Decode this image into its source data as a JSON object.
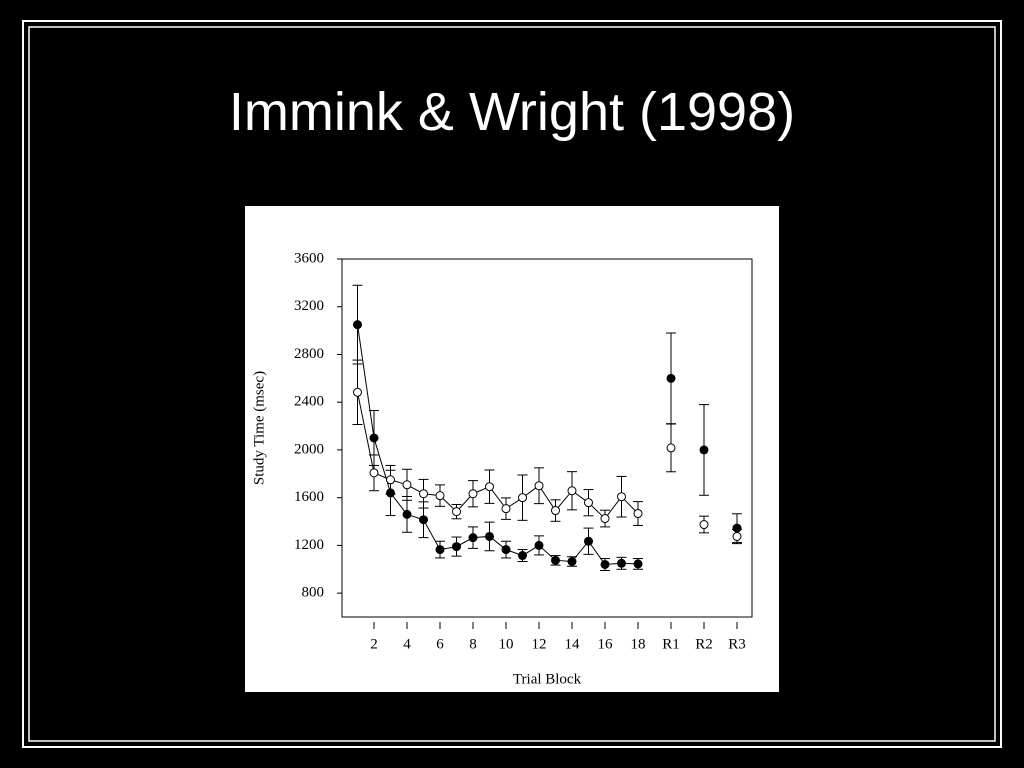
{
  "slide_title": "Immink & Wright (1998)",
  "chart_data": {
    "type": "line",
    "x_label": "Trial Block",
    "y_label": "Study Time (msec)",
    "categories": [
      null,
      "2",
      null,
      "4",
      null,
      "6",
      null,
      "8",
      null,
      "10",
      null,
      "12",
      null,
      "14",
      null,
      "16",
      null,
      "18",
      null,
      "R1",
      null,
      "R2",
      null,
      "R3"
    ],
    "ylim": [
      600,
      3600
    ],
    "yticks": [
      800,
      1200,
      1600,
      2000,
      2400,
      2800,
      3200,
      3600
    ],
    "series": [
      {
        "color": "#000000",
        "marker_fill": "#000000",
        "values": [
          3050,
          2100,
          1640,
          1460,
          1415,
          1165,
          1190,
          1265,
          1275,
          1165,
          1115,
          1200,
          1075,
          1065,
          1235,
          1040,
          1050,
          1045,
          null,
          2600,
          null,
          2000,
          null,
          1345
        ],
        "error": [
          330,
          230,
          190,
          150,
          150,
          70,
          80,
          90,
          120,
          70,
          50,
          80,
          40,
          40,
          110,
          50,
          50,
          45,
          null,
          380,
          null,
          380,
          null,
          120
        ]
      },
      {
        "color": "#000000",
        "marker_fill": "#ffffff",
        "values": [
          2483,
          1808,
          1750,
          1708,
          1633,
          1617,
          1483,
          1633,
          1692,
          1508,
          1600,
          1700,
          1492,
          1658,
          1558,
          1425,
          1608,
          1467,
          null,
          2017,
          null,
          1375,
          null,
          1275
        ],
        "error": [
          270,
          150,
          120,
          130,
          120,
          90,
          60,
          110,
          140,
          90,
          190,
          150,
          90,
          160,
          110,
          70,
          170,
          100,
          null,
          200,
          null,
          70,
          null,
          60
        ]
      }
    ]
  }
}
